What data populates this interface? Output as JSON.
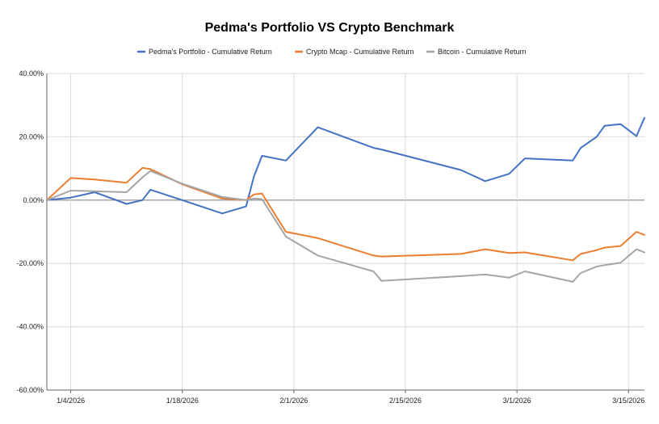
{
  "chart_data": {
    "type": "line",
    "title": "Pedma's Portfolio VS Crypto Benchmark",
    "xlabel": "",
    "ylabel": "",
    "ylim": [
      -60,
      40
    ],
    "yticks": [
      40,
      20,
      0,
      -20,
      -40,
      -60
    ],
    "ytick_labels": [
      "40.00%",
      "20.00%",
      "0.00%",
      "-20.00%",
      "-40.00%",
      "-60.00%"
    ],
    "xlim": [
      "2026-01-01",
      "2026-03-17"
    ],
    "xticks": [
      "2026-01-04",
      "2026-01-18",
      "2026-02-01",
      "2026-02-15",
      "2026-03-01",
      "2026-03-15"
    ],
    "xtick_labels": [
      "1/4/2026",
      "1/18/2026",
      "2/1/2026",
      "2/15/2026",
      "3/1/2026",
      "3/15/2026"
    ],
    "grid": true,
    "legend_position": "top",
    "series": [
      {
        "name": "Pedma's Portfolio - Cumulative Return",
        "color": "#4472c4",
        "points": [
          [
            "2026-01-01",
            0.0
          ],
          [
            "2026-01-04",
            0.8
          ],
          [
            "2026-01-07",
            2.5
          ],
          [
            "2026-01-11",
            -1.2
          ],
          [
            "2026-01-13",
            0.0
          ],
          [
            "2026-01-14",
            3.3
          ],
          [
            "2026-01-18",
            0.0
          ],
          [
            "2026-01-23",
            -4.2
          ],
          [
            "2026-01-26",
            -2.0
          ],
          [
            "2026-01-27",
            7.5
          ],
          [
            "2026-01-28",
            14.0
          ],
          [
            "2026-01-31",
            12.5
          ],
          [
            "2026-02-04",
            23.0
          ],
          [
            "2026-02-11",
            16.5
          ],
          [
            "2026-02-12",
            16.0
          ],
          [
            "2026-02-22",
            9.5
          ],
          [
            "2026-02-25",
            6.0
          ],
          [
            "2026-02-28",
            8.3
          ],
          [
            "2026-03-02",
            13.2
          ],
          [
            "2026-03-08",
            12.5
          ],
          [
            "2026-03-09",
            16.5
          ],
          [
            "2026-03-11",
            20.0
          ],
          [
            "2026-03-12",
            23.5
          ],
          [
            "2026-03-14",
            24.0
          ],
          [
            "2026-03-16",
            20.2
          ],
          [
            "2026-03-17",
            26.0
          ]
        ]
      },
      {
        "name": "Crypto Mcap - Cumulative Return",
        "color": "#ed7d31",
        "points": [
          [
            "2026-01-01",
            0.0
          ],
          [
            "2026-01-04",
            7.0
          ],
          [
            "2026-01-07",
            6.5
          ],
          [
            "2026-01-11",
            5.5
          ],
          [
            "2026-01-13",
            10.2
          ],
          [
            "2026-01-14",
            9.8
          ],
          [
            "2026-01-18",
            5.0
          ],
          [
            "2026-01-23",
            0.5
          ],
          [
            "2026-01-26",
            0.0
          ],
          [
            "2026-01-27",
            1.8
          ],
          [
            "2026-01-28",
            2.1
          ],
          [
            "2026-01-31",
            -10.0
          ],
          [
            "2026-02-04",
            -12.0
          ],
          [
            "2026-02-11",
            -17.5
          ],
          [
            "2026-02-12",
            -17.8
          ],
          [
            "2026-02-22",
            -17.0
          ],
          [
            "2026-02-25",
            -15.5
          ],
          [
            "2026-02-28",
            -16.7
          ],
          [
            "2026-03-02",
            -16.5
          ],
          [
            "2026-03-08",
            -19.0
          ],
          [
            "2026-03-09",
            -17.0
          ],
          [
            "2026-03-11",
            -15.8
          ],
          [
            "2026-03-12",
            -15.0
          ],
          [
            "2026-03-14",
            -14.5
          ],
          [
            "2026-03-16",
            -10.0
          ],
          [
            "2026-03-17",
            -11.0
          ]
        ]
      },
      {
        "name": "Bitcoin - Cumulative Return",
        "color": "#a5a5a5",
        "points": [
          [
            "2026-01-01",
            0.0
          ],
          [
            "2026-01-04",
            3.0
          ],
          [
            "2026-01-07",
            2.8
          ],
          [
            "2026-01-11",
            2.5
          ],
          [
            "2026-01-13",
            7.2
          ],
          [
            "2026-01-14",
            9.2
          ],
          [
            "2026-01-18",
            5.2
          ],
          [
            "2026-01-23",
            1.0
          ],
          [
            "2026-01-26",
            0.0
          ],
          [
            "2026-01-27",
            0.5
          ],
          [
            "2026-01-28",
            0.3
          ],
          [
            "2026-01-31",
            -11.5
          ],
          [
            "2026-02-04",
            -17.5
          ],
          [
            "2026-02-11",
            -22.5
          ],
          [
            "2026-02-12",
            -25.5
          ],
          [
            "2026-02-22",
            -24.0
          ],
          [
            "2026-02-25",
            -23.5
          ],
          [
            "2026-02-28",
            -24.5
          ],
          [
            "2026-03-02",
            -22.5
          ],
          [
            "2026-03-08",
            -25.8
          ],
          [
            "2026-03-09",
            -23.0
          ],
          [
            "2026-03-11",
            -21.0
          ],
          [
            "2026-03-12",
            -20.5
          ],
          [
            "2026-03-14",
            -19.8
          ],
          [
            "2026-03-16",
            -15.5
          ],
          [
            "2026-03-17",
            -16.5
          ]
        ]
      }
    ]
  }
}
